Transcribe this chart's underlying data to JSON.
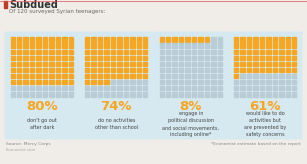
{
  "title": "Subdued",
  "subtitle": "Of 120 surveyed Syrian teenagers:",
  "title_color": "#333333",
  "title_bar_color": "#c0392b",
  "background_color": "#f0ede8",
  "panel_bg": "#d6e8f0",
  "dot_orange": "#f5a623",
  "dot_gray": "#b8cdd6",
  "stats": [
    {
      "pct": 80,
      "label": "don't go out\nafter dark"
    },
    {
      "pct": 74,
      "label": "do no activities\nother than school"
    },
    {
      "pct": 8,
      "label": "engage in\npolitical discussion\nand social movements,\nincluding online*"
    },
    {
      "pct": 61,
      "label": "would like to do\nactivities but\nare prevented by\nsafety concerns"
    }
  ],
  "source_left": "Source: Mercy Corps",
  "source_right": "*Economist estimate based on the report",
  "grid_rows": 10,
  "grid_cols": 10
}
